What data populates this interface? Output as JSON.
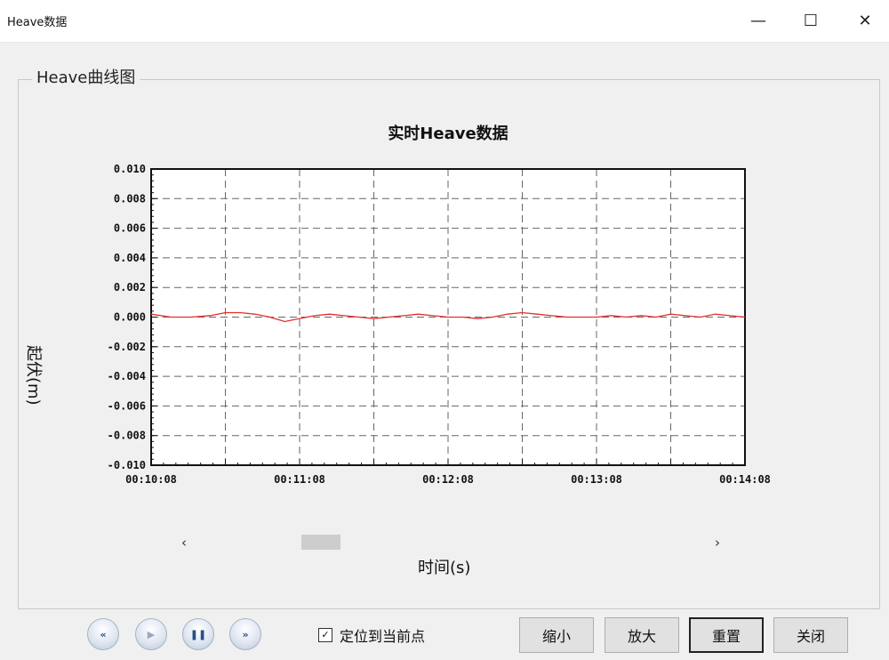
{
  "window": {
    "title": "Heave数据",
    "min_icon": "minimize-icon",
    "max_icon": "maximize-icon",
    "close_icon": "close-icon"
  },
  "group": {
    "title": "Heave曲线图"
  },
  "chart_data": {
    "type": "line",
    "title": "实时Heave数据",
    "xlabel": "时间(s)",
    "ylabel": "起伏(m)",
    "ylim": [
      -0.01,
      0.01
    ],
    "yticks": [
      "0.010",
      "0.008",
      "0.006",
      "0.004",
      "0.002",
      "0.000",
      "-0.002",
      "-0.004",
      "-0.006",
      "-0.008",
      "-0.010"
    ],
    "xticks": [
      "00:10:08",
      "00:11:08",
      "00:12:08",
      "00:13:08",
      "00:14:08"
    ],
    "xlim": [
      0,
      240
    ],
    "grid": true,
    "series": [
      {
        "color": "#e03030",
        "x": [
          0,
          8,
          16,
          24,
          30,
          36,
          42,
          48,
          54,
          60,
          66,
          72,
          78,
          84,
          90,
          96,
          102,
          108,
          114,
          120,
          126,
          132,
          138,
          144,
          150,
          156,
          162,
          168,
          174,
          180,
          186,
          192,
          198,
          204,
          210,
          216,
          222,
          228,
          234,
          240
        ],
        "y": [
          0.0002,
          0.0,
          0.0,
          0.0001,
          0.0003,
          0.0003,
          0.0002,
          0.0,
          -0.0003,
          -0.0001,
          0.0001,
          0.0002,
          0.0001,
          0.0,
          -0.0001,
          0.0,
          0.0001,
          0.0002,
          0.0001,
          0.0,
          0.0,
          -0.0001,
          0.0,
          0.0002,
          0.0003,
          0.0002,
          0.0001,
          0.0,
          0.0,
          0.0,
          0.0001,
          0.0,
          0.0001,
          0.0,
          0.0002,
          0.0001,
          0.0,
          0.0002,
          0.0001,
          0.0
        ]
      }
    ]
  },
  "scrollbar": {
    "left_icon": "‹",
    "right_icon": "›"
  },
  "media": {
    "rewind": "«",
    "play": "▶",
    "pause": "❚❚",
    "forward": "»"
  },
  "checkbox": {
    "label": "定位到当前点",
    "checked": true,
    "mark": "✓"
  },
  "buttons": {
    "shrink": "缩小",
    "enlarge": "放大",
    "reset": "重置",
    "close": "关闭"
  }
}
